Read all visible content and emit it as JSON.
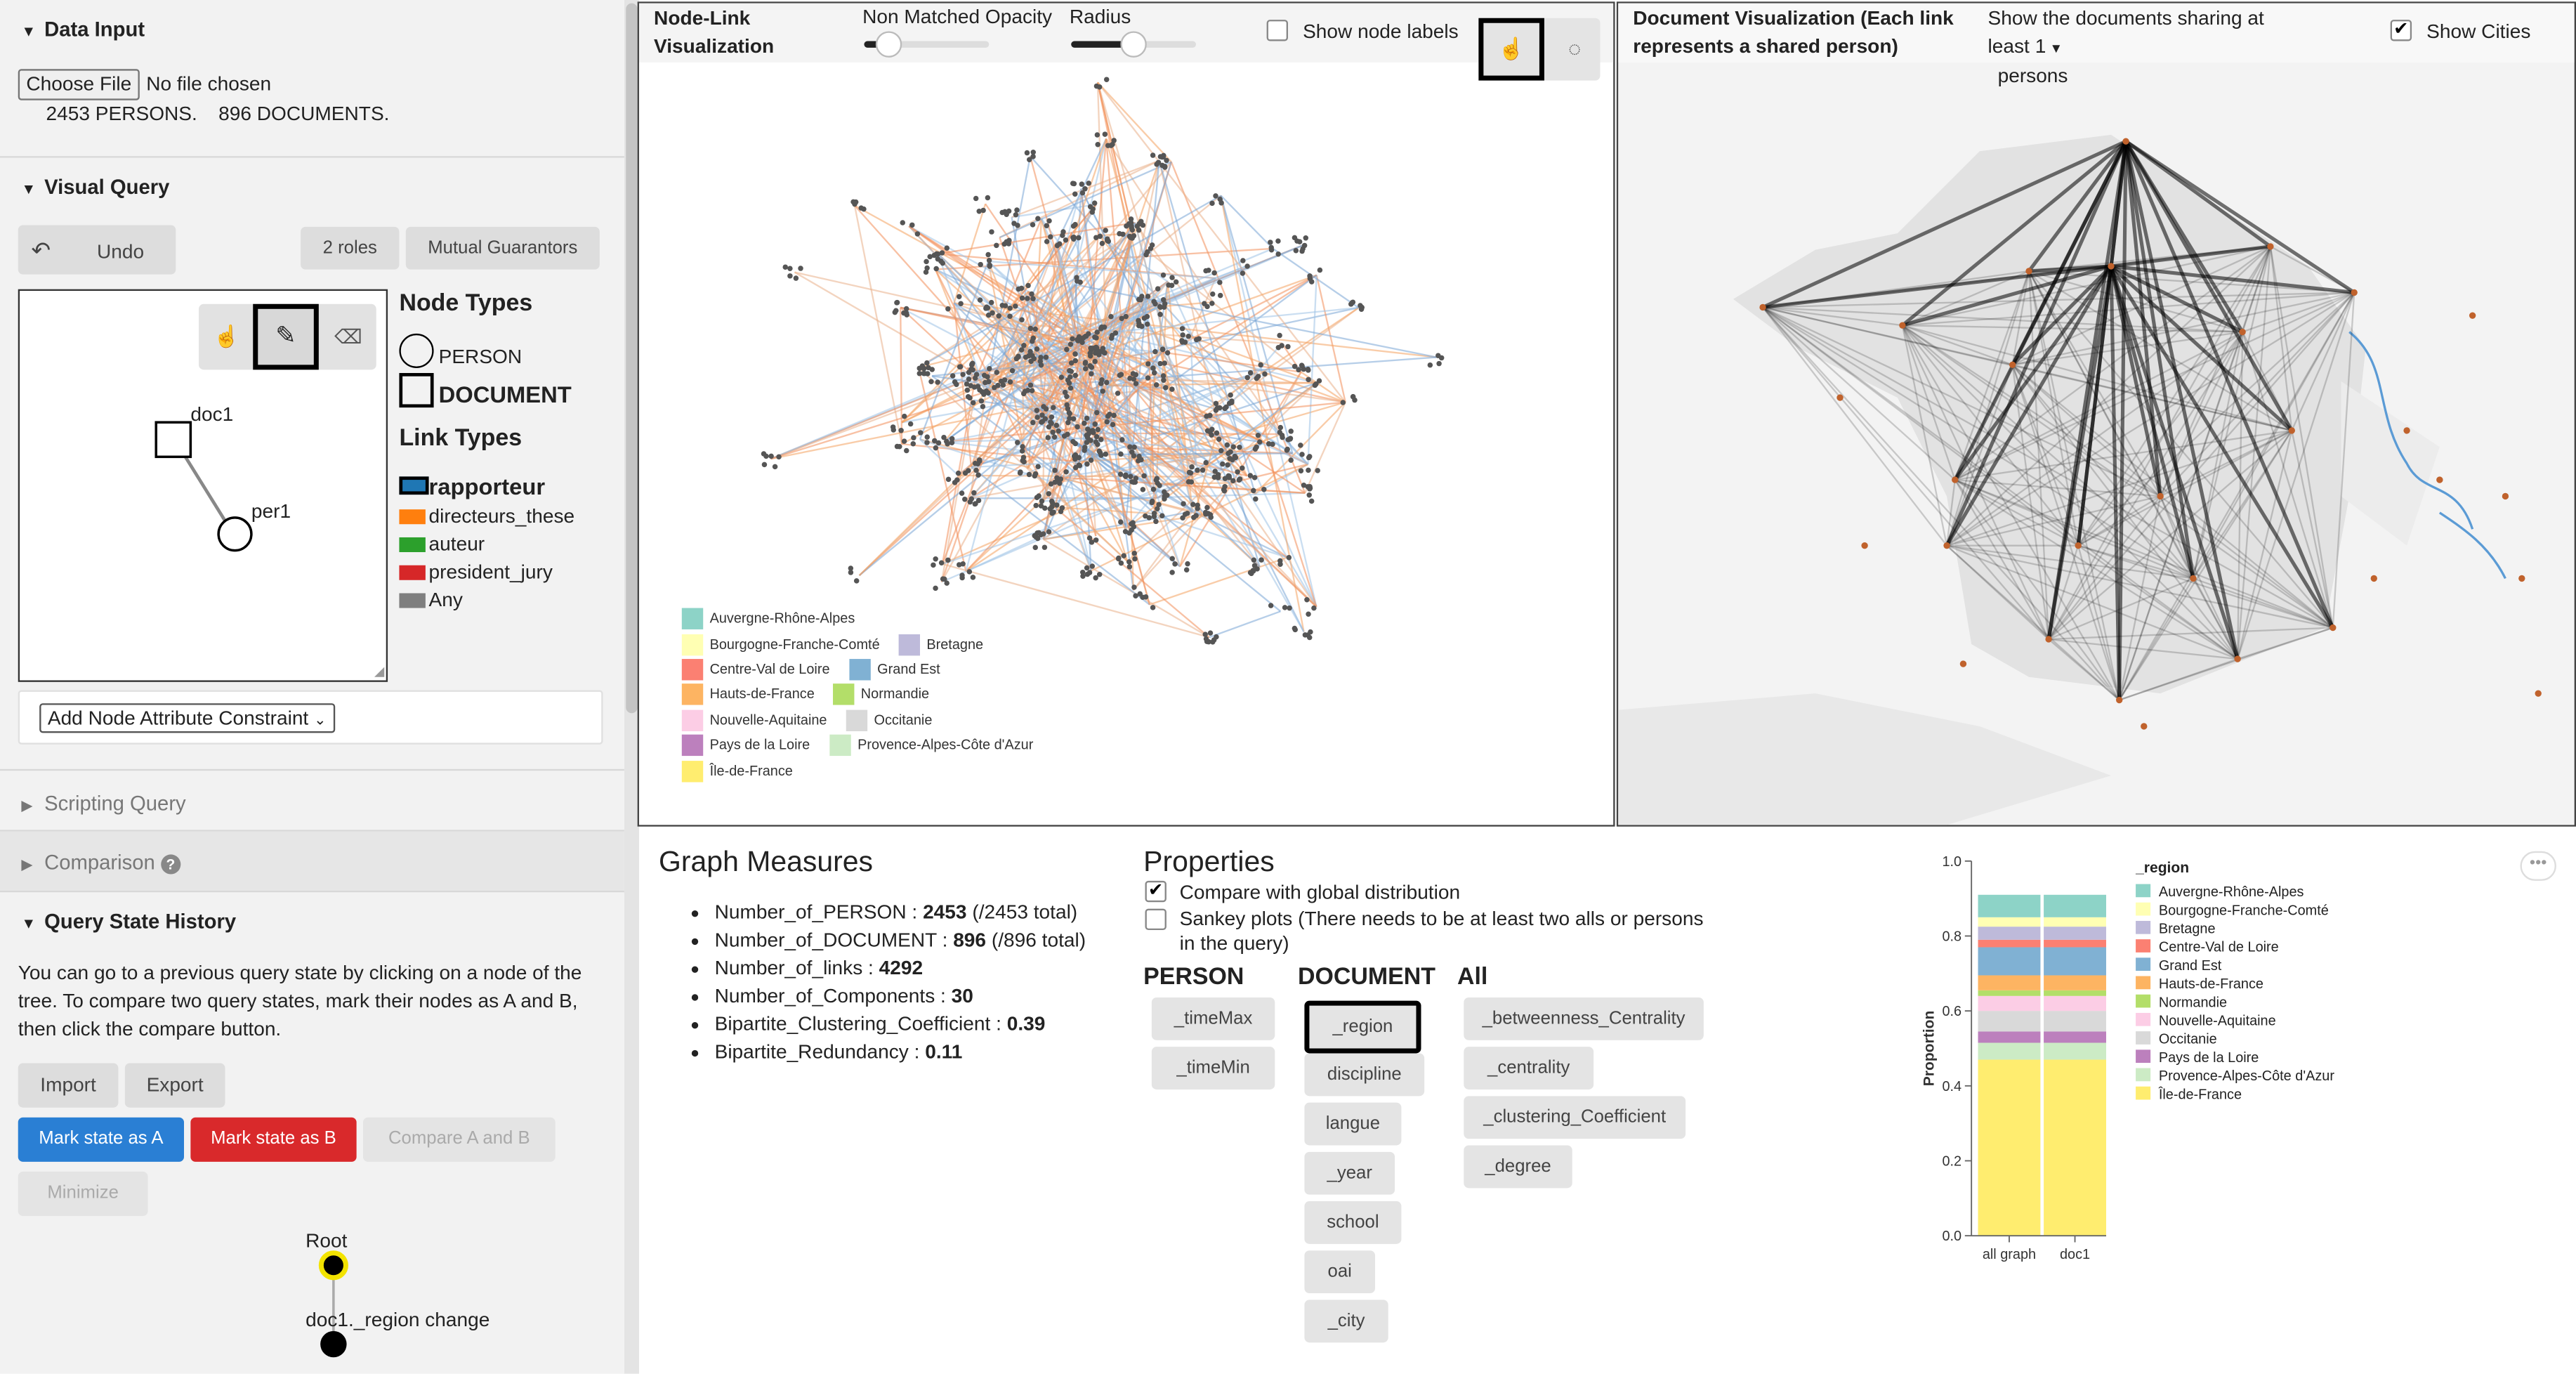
{
  "left_panel": {
    "data_input": {
      "title": "Data Input",
      "file_button": "Choose File",
      "file_status": "No file chosen",
      "persons": "2453 PERSONS.",
      "documents": "896 DOCUMENTS."
    },
    "visual_query": {
      "title": "Visual Query",
      "undo": "Undo",
      "btn_roles": "2 roles",
      "btn_mutual": "Mutual Guarantors",
      "node_types_title": "Node Types",
      "node_person": "PERSON",
      "node_document": "DOCUMENT",
      "link_types_title": "Link Types",
      "link_types": [
        {
          "label": "rapporteur",
          "color": "#1f77b4"
        },
        {
          "label": "directeurs_these",
          "color": "#ff7f0e"
        },
        {
          "label": "auteur",
          "color": "#2ca02c"
        },
        {
          "label": "president_jury",
          "color": "#d62728"
        },
        {
          "label": "Any",
          "color": "#7f7f7f"
        }
      ],
      "canvas_nodes": {
        "doc": "doc1",
        "person": "per1"
      },
      "add_constraint": "Add Node Attribute Constraint"
    },
    "scripting_query": "Scripting Query",
    "comparison": "Comparison",
    "query_history": {
      "title": "Query State History",
      "description": "You can go to a previous query state by clicking on a node of the tree. To compare two query states, mark their nodes as A and B, then click the compare button.",
      "import": "Import",
      "export": "Export",
      "mark_a": "Mark state as A",
      "mark_b": "Mark state as B",
      "compare": "Compare A and B",
      "minimize": "Minimize",
      "tree": {
        "root": "Root",
        "child": "doc1._region change"
      }
    },
    "colors": {
      "mark_a": "#2a7fd4",
      "mark_b": "#d9292b"
    }
  },
  "node_link": {
    "title": "Node-Link Visualization",
    "opacity_label": "Non Matched Opacity",
    "opacity_value": 0.2,
    "radius_label": "Radius",
    "radius_value": 0.5,
    "show_labels": "Show node labels",
    "show_labels_checked": false,
    "legend": [
      {
        "label": "Auvergne-Rhône-Alpes",
        "color": "#8dd3c7"
      },
      {
        "label": "Bourgogne-Franche-Comté",
        "color": "#ffffb3"
      },
      {
        "label": "Bretagne",
        "color": "#bebada"
      },
      {
        "label": "Centre-Val de Loire",
        "color": "#fb8072"
      },
      {
        "label": "Grand Est",
        "color": "#80b1d3"
      },
      {
        "label": "Hauts-de-France",
        "color": "#fdb462"
      },
      {
        "label": "Normandie",
        "color": "#b3de69"
      },
      {
        "label": "Nouvelle-Aquitaine",
        "color": "#fccde5"
      },
      {
        "label": "Occitanie",
        "color": "#d9d9d9"
      },
      {
        "label": "Pays de la Loire",
        "color": "#bc80bd"
      },
      {
        "label": "Provence-Alpes-Côte d'Azur",
        "color": "#ccebc5"
      },
      {
        "label": "Île-de-France",
        "color": "#ffed6f"
      }
    ]
  },
  "doc_viz": {
    "title": "Document Visualization (Each link represents a shared person)",
    "sharing_label": "Show the documents sharing at least",
    "sharing_value": "1",
    "sharing_unit": "persons",
    "show_cities": "Show Cities",
    "show_cities_checked": true
  },
  "graph_measures": {
    "title": "Graph Measures",
    "items": [
      {
        "name": "Number_of_PERSON",
        "value": "2453",
        "extra": "(/2453 total)"
      },
      {
        "name": "Number_of_DOCUMENT",
        "value": "896",
        "extra": "(/896 total)"
      },
      {
        "name": "Number_of_links",
        "value": "4292",
        "extra": ""
      },
      {
        "name": "Number_of_Components",
        "value": "30",
        "extra": ""
      },
      {
        "name": "Bipartite_Clustering_Coefficient",
        "value": "0.39",
        "extra": ""
      },
      {
        "name": "Bipartite_Redundancy",
        "value": "0.11",
        "extra": ""
      }
    ]
  },
  "properties": {
    "title": "Properties",
    "compare_global": "Compare with global distribution",
    "compare_global_checked": true,
    "sankey": "Sankey plots (There needs to be at least two alls or persons in the query)",
    "sankey_checked": false,
    "person_title": "PERSON",
    "document_title": "DOCUMENT",
    "all_title": "All",
    "person_props": [
      "_timeMax",
      "_timeMin"
    ],
    "document_props": [
      "_region",
      "discipline",
      "langue",
      "_year",
      "school",
      "oai",
      "_city"
    ],
    "all_props": [
      "_betweenness_Centrality",
      "_centrality",
      "_clustering_Coefficient",
      "_degree"
    ],
    "selected": "_region"
  },
  "chart_data": {
    "type": "bar",
    "stacked": true,
    "title": "",
    "xlabel": "",
    "ylabel": "Proportion",
    "ylim": [
      0,
      1
    ],
    "yticks": [
      "0.0",
      "0.2",
      "0.4",
      "0.6",
      "0.8",
      "1.0"
    ],
    "categories": [
      "all graph",
      "doc1"
    ],
    "legend_title": "_region",
    "series": [
      {
        "name": "Île-de-France",
        "values": [
          0.47,
          0.47
        ]
      },
      {
        "name": "Provence-Alpes-Côte d'Azur",
        "values": [
          0.045,
          0.045
        ]
      },
      {
        "name": "Pays de la Loire",
        "values": [
          0.03,
          0.03
        ]
      },
      {
        "name": "Occitanie",
        "values": [
          0.055,
          0.055
        ]
      },
      {
        "name": "Nouvelle-Aquitaine",
        "values": [
          0.04,
          0.04
        ]
      },
      {
        "name": "Normandie",
        "values": [
          0.015,
          0.015
        ]
      },
      {
        "name": "Hauts-de-France",
        "values": [
          0.04,
          0.04
        ]
      },
      {
        "name": "Grand Est",
        "values": [
          0.075,
          0.075
        ]
      },
      {
        "name": "Centre-Val de Loire",
        "values": [
          0.02,
          0.02
        ]
      },
      {
        "name": "Bretagne",
        "values": [
          0.035,
          0.035
        ]
      },
      {
        "name": "Bourgogne-Franche-Comté",
        "values": [
          0.025,
          0.025
        ]
      },
      {
        "name": "Auvergne-Rhône-Alpes",
        "values": [
          0.06,
          0.06
        ]
      }
    ],
    "colors": {
      "Auvergne-Rhône-Alpes": "#8dd3c7",
      "Bourgogne-Franche-Comté": "#ffffb3",
      "Bretagne": "#bebada",
      "Centre-Val de Loire": "#fb8072",
      "Grand Est": "#80b1d3",
      "Hauts-de-France": "#fdb462",
      "Normandie": "#b3de69",
      "Nouvelle-Aquitaine": "#fccde5",
      "Occitanie": "#d9d9d9",
      "Pays de la Loire": "#bc80bd",
      "Provence-Alpes-Côte d'Azur": "#ccebc5",
      "Île-de-France": "#ffed6f"
    },
    "legend_order": [
      "Auvergne-Rhône-Alpes",
      "Bourgogne-Franche-Comté",
      "Bretagne",
      "Centre-Val de Loire",
      "Grand Est",
      "Hauts-de-France",
      "Normandie",
      "Nouvelle-Aquitaine",
      "Occitanie",
      "Pays de la Loire",
      "Provence-Alpes-Côte d'Azur",
      "Île-de-France"
    ]
  }
}
